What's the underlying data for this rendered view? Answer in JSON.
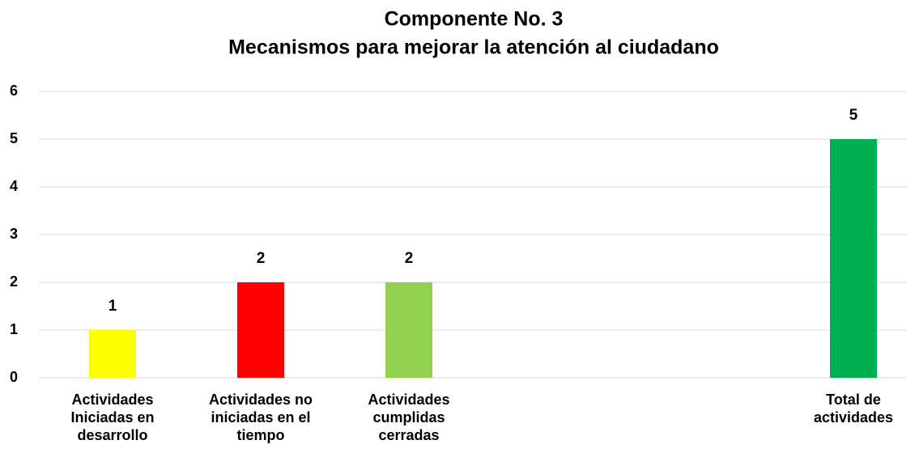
{
  "chart_data": {
    "type": "bar",
    "title": [
      "Componente No. 3",
      "Mecanismos para mejorar la atención al ciudadano"
    ],
    "categories": [
      "Actividades Iniciadas en desarrollo",
      "Actividades no iniciadas en el tiempo",
      "Actividades cumplidas cerradas",
      null,
      null,
      "Total de actividades"
    ],
    "values": [
      1,
      2,
      2,
      null,
      null,
      5
    ],
    "colors": [
      "#ffff00",
      "#ff0000",
      "#92d050",
      null,
      null,
      "#00b050"
    ],
    "ylim": [
      0,
      6
    ],
    "yticks": [
      0,
      1,
      2,
      3,
      4,
      5,
      6
    ],
    "grid": true
  }
}
